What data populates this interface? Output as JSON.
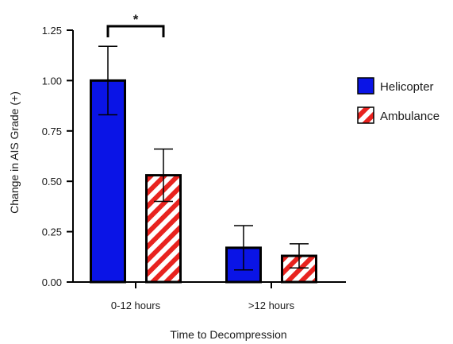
{
  "chart_data": {
    "type": "bar",
    "xlabel": "Time to Decompression",
    "ylabel": "Change in AIS Grade (+)",
    "categories": [
      "0-12 hours",
      ">12 hours"
    ],
    "ylim": [
      0,
      1.25
    ],
    "yticks": [
      "0.00",
      "0.25",
      "0.50",
      "0.75",
      "1.00",
      "1.25"
    ],
    "series": [
      {
        "name": "Helicopter",
        "values": [
          1.0,
          0.17
        ],
        "error_low": [
          0.83,
          0.06
        ],
        "error_high": [
          1.17,
          0.28
        ],
        "color": "#0a14e6",
        "pattern": "solid"
      },
      {
        "name": "Ambulance",
        "values": [
          0.53,
          0.13
        ],
        "error_low": [
          0.4,
          0.07
        ],
        "error_high": [
          0.66,
          0.19
        ],
        "color": "#e8231f",
        "pattern": "diagonal-stripes"
      }
    ],
    "annotations": [
      {
        "text": "*",
        "category_index": 0,
        "between_series": [
          0,
          1
        ],
        "y": 1.4
      }
    ],
    "grid": false,
    "legend_position": "right"
  }
}
